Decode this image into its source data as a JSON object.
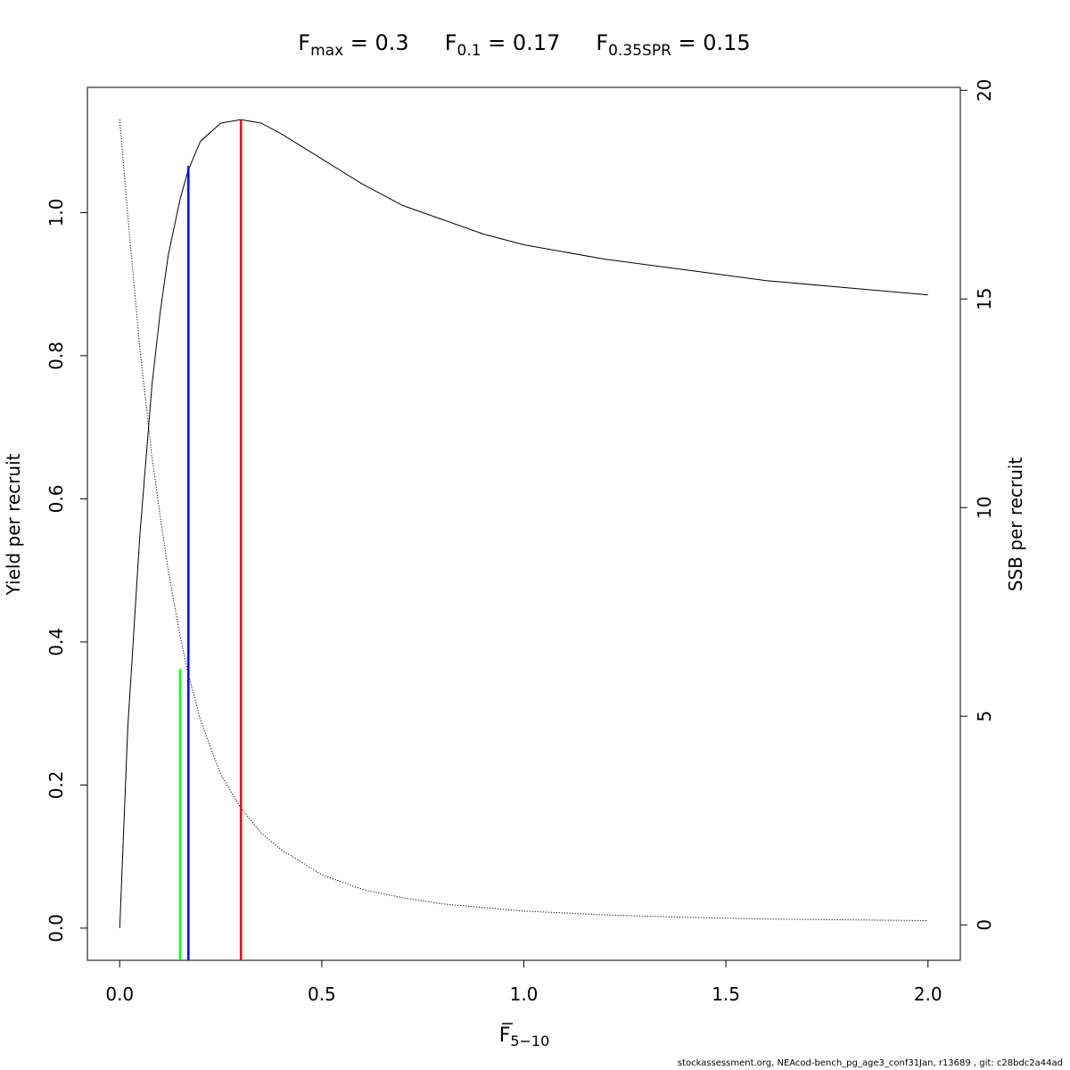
{
  "chart_data": {
    "type": "line",
    "title": {
      "parts": [
        {
          "base": "F",
          "sub": "max",
          "value": "= 0.3"
        },
        {
          "base": "F",
          "sub": "0.1",
          "value": "= 0.17"
        },
        {
          "base": "F",
          "sub": "0.35SPR",
          "value": "= 0.15"
        }
      ]
    },
    "xlabel": {
      "base": "F",
      "sub": "5−10",
      "overbar": true
    },
    "ylabel": "Yield per recruit",
    "y2label": "SSB per recruit",
    "xlim": [
      -0.08,
      2.08
    ],
    "ylim": [
      -0.045,
      1.175
    ],
    "y2lim": [
      -0.85,
      20.07
    ],
    "xticks": [
      0.0,
      0.5,
      1.0,
      1.5,
      2.0
    ],
    "xtick_labels": [
      "0.0",
      "0.5",
      "1.0",
      "1.5",
      "2.0"
    ],
    "yticks": [
      0.0,
      0.2,
      0.4,
      0.6,
      0.8,
      1.0
    ],
    "ytick_labels": [
      "0.0",
      "0.2",
      "0.4",
      "0.6",
      "0.8",
      "1.0"
    ],
    "y2ticks": [
      0,
      5,
      10,
      15,
      20
    ],
    "y2tick_labels": [
      "0",
      "5",
      "10",
      "15",
      "20"
    ],
    "grid": false,
    "series": [
      {
        "axis": "left",
        "style": "solid",
        "color": "#000000",
        "x": [
          0,
          0.02,
          0.05,
          0.08,
          0.1,
          0.12,
          0.15,
          0.17,
          0.2,
          0.25,
          0.3,
          0.35,
          0.4,
          0.5,
          0.6,
          0.7,
          0.8,
          0.9,
          1.0,
          1.2,
          1.4,
          1.6,
          1.8,
          2.0
        ],
        "values": [
          0.0,
          0.28,
          0.55,
          0.76,
          0.86,
          0.94,
          1.02,
          1.06,
          1.1,
          1.125,
          1.13,
          1.125,
          1.11,
          1.075,
          1.04,
          1.01,
          0.99,
          0.97,
          0.955,
          0.935,
          0.92,
          0.905,
          0.895,
          0.885
        ]
      },
      {
        "axis": "right",
        "style": "dotted",
        "color": "#000000",
        "x": [
          0,
          0.02,
          0.05,
          0.08,
          0.1,
          0.12,
          0.15,
          0.17,
          0.2,
          0.25,
          0.3,
          0.35,
          0.4,
          0.5,
          0.6,
          0.7,
          0.8,
          1.0,
          1.2,
          1.4,
          1.6,
          1.8,
          2.0
        ],
        "values": [
          19.3,
          17.0,
          13.8,
          11.2,
          9.8,
          8.5,
          6.9,
          6.0,
          4.9,
          3.6,
          2.8,
          2.2,
          1.8,
          1.2,
          0.85,
          0.65,
          0.5,
          0.33,
          0.24,
          0.18,
          0.14,
          0.12,
          0.1
        ]
      }
    ],
    "reference_lines": [
      {
        "x": 0.3,
        "y_top": 1.13,
        "color": "#ff0000"
      },
      {
        "x": 0.17,
        "y_top": 1.065,
        "color": "#0000ff"
      },
      {
        "x": 0.15,
        "y_top": 0.362,
        "color": "#00ff00"
      }
    ]
  },
  "footer": "stockassessment.org, NEAcod-bench_pg_age3_conf31Jan, r13689 , git: c28bdc2a44ad"
}
